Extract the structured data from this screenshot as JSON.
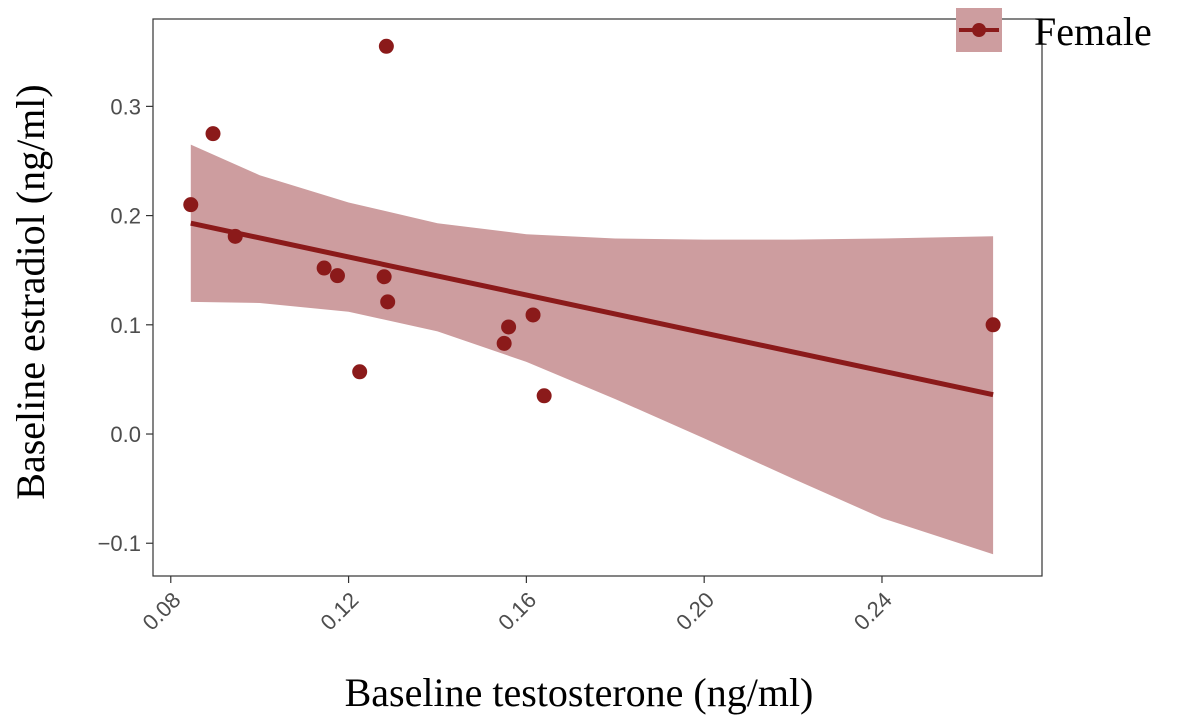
{
  "chart_data": {
    "type": "scatter",
    "xlabel": "Baseline testosterone (ng/ml)",
    "ylabel": "Baseline estradiol (ng/ml)",
    "xlim": [
      0.076,
      0.276
    ],
    "ylim": [
      -0.13,
      0.38
    ],
    "x_ticks": [
      0.08,
      0.12,
      0.16,
      0.2,
      0.24
    ],
    "x_tick_labels": [
      "0.08",
      "0.12",
      "0.16",
      "0.20",
      "0.24"
    ],
    "y_ticks": [
      -0.1,
      0.0,
      0.1,
      0.2,
      0.3
    ],
    "y_tick_labels": [
      "−0.1",
      "0.0",
      "0.1",
      "0.2",
      "0.3"
    ],
    "legend": {
      "position": "top-right"
    },
    "series": [
      {
        "name": "Female",
        "color": "#8b1a1a",
        "points": [
          {
            "x": 0.0845,
            "y": 0.21
          },
          {
            "x": 0.0895,
            "y": 0.275
          },
          {
            "x": 0.0945,
            "y": 0.181
          },
          {
            "x": 0.1145,
            "y": 0.152
          },
          {
            "x": 0.1175,
            "y": 0.145
          },
          {
            "x": 0.1225,
            "y": 0.057
          },
          {
            "x": 0.128,
            "y": 0.144
          },
          {
            "x": 0.1285,
            "y": 0.355
          },
          {
            "x": 0.1288,
            "y": 0.121
          },
          {
            "x": 0.155,
            "y": 0.083
          },
          {
            "x": 0.156,
            "y": 0.098
          },
          {
            "x": 0.1615,
            "y": 0.109
          },
          {
            "x": 0.164,
            "y": 0.035
          },
          {
            "x": 0.265,
            "y": 0.1
          }
        ],
        "fit_line": {
          "x": [
            0.0845,
            0.265
          ],
          "y": [
            0.193,
            0.036
          ]
        },
        "confidence_band": {
          "x": [
            0.0845,
            0.1,
            0.12,
            0.14,
            0.16,
            0.18,
            0.2,
            0.22,
            0.24,
            0.265
          ],
          "upper": [
            0.265,
            0.237,
            0.212,
            0.193,
            0.183,
            0.179,
            0.178,
            0.178,
            0.179,
            0.181
          ],
          "lower": [
            0.121,
            0.12,
            0.112,
            0.094,
            0.066,
            0.032,
            -0.004,
            -0.041,
            -0.077,
            -0.11
          ]
        },
        "band_color": "#cd9d9f"
      }
    ]
  }
}
